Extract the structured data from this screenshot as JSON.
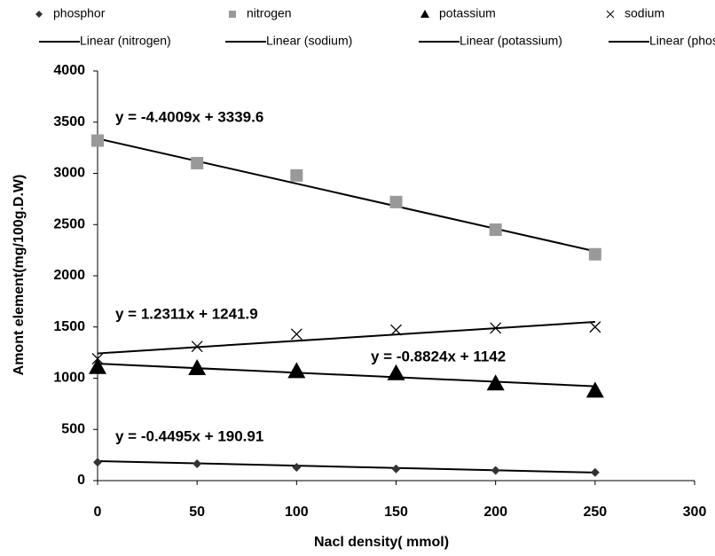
{
  "chart_data": {
    "type": "scatter",
    "x_label": "Nacl density( mmol)",
    "y_label": "Amont element(mg/100g.D.W)",
    "x": [
      0,
      50,
      100,
      150,
      200,
      250
    ],
    "series": [
      {
        "name": "phosphor",
        "color": "#333333",
        "marker": "diamond",
        "values": [
          180,
          165,
          130,
          115,
          100,
          80
        ]
      },
      {
        "name": "nitrogen",
        "color": "#999999",
        "marker": "square",
        "values": [
          3320,
          3100,
          2980,
          2720,
          2450,
          2210
        ]
      },
      {
        "name": "potassium",
        "color": "#000000",
        "marker": "triangle",
        "values": [
          1110,
          1100,
          1070,
          1050,
          950,
          880
        ]
      },
      {
        "name": "sodium",
        "color": "#000000",
        "marker": "x",
        "values": [
          1190,
          1310,
          1430,
          1470,
          1490,
          1500
        ]
      }
    ],
    "trendlines": [
      {
        "name": "Linear (nitrogen)",
        "slope": -4.4009,
        "intercept": 3339.6,
        "label": "y = -4.4009x + 3339.6"
      },
      {
        "name": "Linear (sodium)",
        "slope": 1.2311,
        "intercept": 1241.9,
        "label": "y = 1.2311x + 1241.9"
      },
      {
        "name": "Linear (potassium)",
        "slope": -0.8824,
        "intercept": 1142,
        "label": "y = -0.8824x + 1142"
      },
      {
        "name": "Linear (phosphor)",
        "slope": -0.4495,
        "intercept": 190.91,
        "label": "y = -0.4495x + 190.91"
      }
    ],
    "xlim": [
      0,
      300
    ],
    "xticks": [
      0,
      50,
      100,
      150,
      200,
      250,
      300
    ],
    "ylim": [
      0,
      4000
    ],
    "yticks": [
      0,
      500,
      1000,
      1500,
      2000,
      2500,
      3000,
      3500,
      4000
    ],
    "grid": false
  }
}
